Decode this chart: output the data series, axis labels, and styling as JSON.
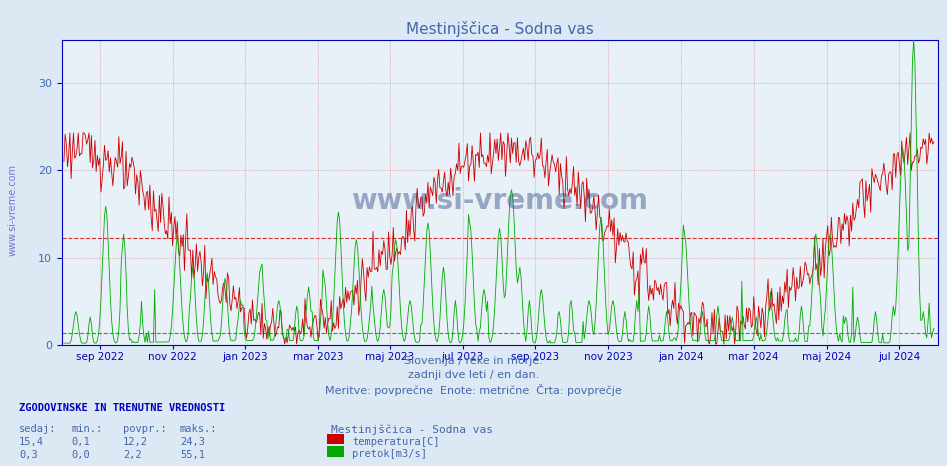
{
  "title": "Mestinjščica - Sodna vas",
  "xlabel_lines": [
    "Slovenija / reke in morje.",
    "zadnji dve leti / en dan.",
    "Meritve: povprečne  Enote: metrične  Črta: povprečje"
  ],
  "background_color": "#dce9f5",
  "plot_background": "#e8f0f8",
  "grid_color_minor": "#d0dce8",
  "grid_color_major_red": "#e08080",
  "grid_color_major_green": "#80c080",
  "title_color": "#4466aa",
  "axis_color": "#0000bb",
  "text_color": "#4466aa",
  "temp_color": "#cc0000",
  "flow_color": "#00aa00",
  "avg_temp_color": "#cc0000",
  "avg_flow_color": "#008800",
  "ylim": [
    0,
    35
  ],
  "yticks": [
    0,
    10,
    20,
    30
  ],
  "avg_temp": 12.2,
  "avg_flow": 2.2,
  "flow_scale_max": 55.1,
  "display_max": 35,
  "n_points": 730,
  "bottom_label_header": "ZGODOVINSKE IN TRENUTNE VREDNOSTI",
  "col_headers": [
    "sedaj:",
    "min.:",
    "povpr.:",
    "maks.:"
  ],
  "temp_row": [
    "15,4",
    "0,1",
    "12,2",
    "24,3"
  ],
  "flow_row": [
    "0,3",
    "0,0",
    "2,2",
    "55,1"
  ],
  "legend_title": "Mestinjščica - Sodna vas",
  "legend_temp": "temperatura[C]",
  "legend_flow": "pretok[m3/s]",
  "month_ticks": [
    [
      30,
      "sep 2022"
    ],
    [
      91,
      "nov 2022"
    ],
    [
      152,
      "jan 2023"
    ],
    [
      213,
      "mar 2023"
    ],
    [
      273,
      "maj 2023"
    ],
    [
      334,
      "jul 2023"
    ],
    [
      395,
      "sep 2023"
    ],
    [
      456,
      "nov 2023"
    ],
    [
      517,
      "jan 2024"
    ],
    [
      578,
      "mar 2024"
    ],
    [
      639,
      "maj 2024"
    ],
    [
      700,
      "jul 2024"
    ]
  ]
}
